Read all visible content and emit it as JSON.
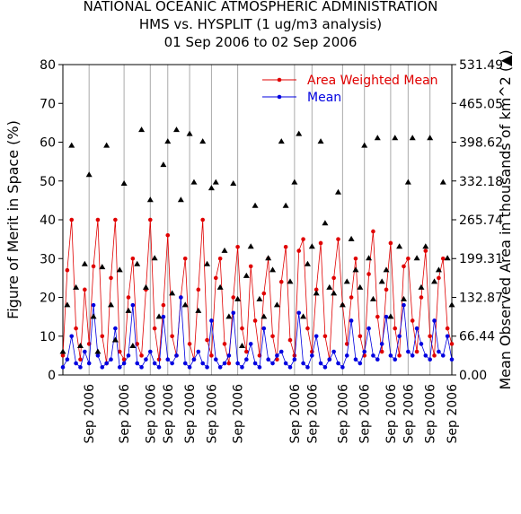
{
  "chart_data": {
    "type": "line",
    "title": [
      "NATIONAL OCEANIC ATMOSPHERIC ADMINISTRATION",
      "HMS vs. HYSPLIT (1 ug/m3 analysis)",
      "01 Sep 2006 to 02 Sep 2006"
    ],
    "ylabel": "Figure of Merit in Space (%)",
    "y2label": "Mean Observed Area in thousands of km^2 (▲)",
    "xlim": [
      0,
      89
    ],
    "xticks": [
      {
        "value": 6,
        "label": "Sep 2006"
      },
      {
        "value": 14,
        "label": "Sep 2006"
      },
      {
        "value": 20,
        "label": "Sep 2006"
      },
      {
        "value": 24,
        "label": "Sep 2006"
      },
      {
        "value": 29,
        "label": "Sep 2006"
      },
      {
        "value": 34,
        "label": "Sep 2006"
      },
      {
        "value": 40,
        "label": "Sep 2006"
      },
      {
        "value": 53,
        "label": "Sep 2006"
      },
      {
        "value": 57,
        "label": "Sep 2006"
      },
      {
        "value": 64,
        "label": "Sep 2006"
      },
      {
        "value": 69,
        "label": "Sep 2006"
      },
      {
        "value": 75,
        "label": "Sep 2006"
      },
      {
        "value": 79,
        "label": "Sep 2006"
      },
      {
        "value": 84,
        "label": "Sep 2006"
      },
      {
        "value": 89,
        "label": "Sep 2006"
      }
    ],
    "ylim": [
      0,
      80
    ],
    "yticks": [
      0,
      10,
      20,
      30,
      40,
      50,
      60,
      70,
      80
    ],
    "y2lim": [
      0,
      531.49
    ],
    "y2ticks": [
      {
        "value": 0,
        "label": "0.00"
      },
      66.44,
      132.87,
      199.31,
      265.74,
      332.18,
      398.62,
      465.05,
      531.49
    ],
    "legend": "upper right",
    "series": [
      {
        "name": "Area Weighted Mean",
        "color": "#e00000",
        "marker": "circle",
        "values": [
          5,
          27,
          40,
          12,
          4,
          22,
          8,
          28,
          40,
          10,
          3,
          25,
          40,
          6,
          4,
          20,
          30,
          8,
          5,
          22,
          40,
          12,
          4,
          18,
          36,
          10,
          5,
          20,
          30,
          8,
          4,
          22,
          40,
          9,
          5,
          25,
          30,
          8,
          3,
          20,
          33,
          12,
          6,
          28,
          14,
          5,
          21,
          30,
          10,
          4,
          24,
          33,
          9,
          5,
          32,
          35,
          12,
          6,
          22,
          34,
          10,
          4,
          25,
          35,
          18,
          8,
          20,
          30,
          10,
          5,
          26,
          37,
          15,
          6,
          22,
          34,
          12,
          5,
          28,
          30,
          14,
          6,
          20,
          32,
          10,
          5,
          25,
          30,
          12,
          8
        ]
      },
      {
        "name": "Mean",
        "color": "#0000e0",
        "marker": "circle",
        "values": [
          2,
          4,
          10,
          3,
          2,
          6,
          3,
          18,
          5,
          2,
          3,
          4,
          12,
          2,
          3,
          5,
          18,
          3,
          2,
          4,
          6,
          3,
          2,
          15,
          4,
          3,
          5,
          20,
          3,
          2,
          4,
          6,
          3,
          2,
          14,
          4,
          2,
          3,
          5,
          16,
          3,
          2,
          4,
          8,
          3,
          2,
          12,
          4,
          3,
          5,
          6,
          3,
          2,
          4,
          16,
          3,
          2,
          5,
          10,
          3,
          2,
          4,
          6,
          3,
          2,
          5,
          14,
          4,
          3,
          6,
          12,
          5,
          4,
          8,
          15,
          5,
          4,
          10,
          18,
          6,
          5,
          12,
          8,
          5,
          4,
          14,
          6,
          5,
          10,
          4
        ]
      },
      {
        "color": "#000000",
        "marker": "triangle",
        "axis": "y2",
        "values": [
          40,
          120,
          393,
          150,
          50,
          190,
          343,
          100,
          40,
          185,
          393,
          120,
          60,
          180,
          328,
          110,
          50,
          190,
          420,
          150,
          300,
          200,
          100,
          360,
          400,
          140,
          420,
          300,
          120,
          413,
          330,
          110,
          400,
          190,
          320,
          330,
          150,
          213,
          100,
          328,
          130,
          50,
          170,
          220,
          290,
          130,
          100,
          200,
          180,
          120,
          400,
          290,
          160,
          330,
          413,
          100,
          190,
          220,
          140,
          400,
          260,
          150,
          140,
          313,
          120,
          160,
          233,
          180,
          150,
          393,
          200,
          130,
          406,
          160,
          180,
          100,
          406,
          220,
          130,
          330,
          406,
          200,
          150,
          220,
          406,
          160,
          180,
          330,
          200,
          120
        ]
      }
    ]
  }
}
